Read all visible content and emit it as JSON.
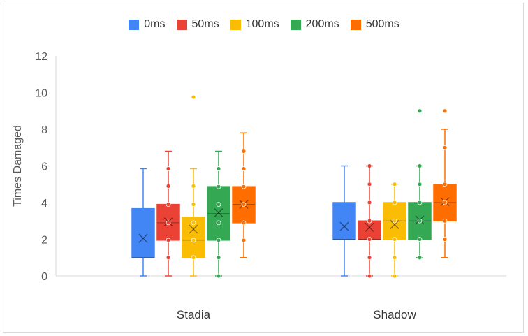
{
  "chart_data": {
    "type": "box",
    "title": "",
    "xlabel": "",
    "ylabel": "Times Damaged",
    "ylim": [
      0,
      12
    ],
    "yticks": [
      0,
      2,
      4,
      6,
      8,
      10,
      12
    ],
    "grid": false,
    "legend_position": "top",
    "categories": [
      "Stadia",
      "Shadow"
    ],
    "series": [
      {
        "name": "0ms",
        "color": "#4285f4",
        "boxes": [
          {
            "min": 0,
            "q1": 1,
            "median": 1,
            "q3": 3.67,
            "max": 5.85,
            "mean": 2.05,
            "points": []
          },
          {
            "min": 0,
            "q1": 2,
            "median": 2,
            "q3": 4,
            "max": 6,
            "mean": 2.7,
            "points": []
          }
        ]
      },
      {
        "name": "50ms",
        "color": "#ea4335",
        "boxes": [
          {
            "min": 0,
            "q1": 1.95,
            "median": 2.9,
            "q3": 3.9,
            "max": 6.8,
            "mean": 2.95,
            "points": [
              1,
              1.95,
              2.9,
              3.9,
              4.9,
              5.85
            ]
          },
          {
            "min": 0,
            "q1": 2,
            "median": 2,
            "q3": 3,
            "max": 6,
            "mean": 2.65,
            "points": [
              0,
              1,
              2,
              3,
              4,
              5,
              6
            ]
          }
        ]
      },
      {
        "name": "100ms",
        "color": "#fbbc04",
        "boxes": [
          {
            "min": 0,
            "q1": 1,
            "median": 1.95,
            "q3": 3.2,
            "max": 5.85,
            "mean": 2.55,
            "points": [
              1,
              1.95,
              2.9,
              3.9,
              4.9,
              9.75
            ]
          },
          {
            "min": 0,
            "q1": 2,
            "median": 3,
            "q3": 4,
            "max": 5,
            "mean": 2.8,
            "points": [
              0,
              1,
              2,
              3,
              4,
              5
            ]
          }
        ]
      },
      {
        "name": "200ms",
        "color": "#34a853",
        "boxes": [
          {
            "min": 0,
            "q1": 1.95,
            "median": 3.4,
            "q3": 4.87,
            "max": 6.8,
            "mean": 3.45,
            "points": [
              0,
              1,
              1.95,
              2.9,
              3.9,
              4.87,
              5.85
            ]
          },
          {
            "min": 1,
            "q1": 2,
            "median": 3,
            "q3": 4,
            "max": 6,
            "mean": 3.05,
            "points": [
              1,
              2,
              3,
              4,
              5,
              6,
              9
            ]
          }
        ]
      },
      {
        "name": "500ms",
        "color": "#ff6d01",
        "boxes": [
          {
            "min": 1,
            "q1": 2.9,
            "median": 3.9,
            "q3": 4.87,
            "max": 7.8,
            "mean": 3.9,
            "points": [
              1.95,
              2.9,
              3.9,
              4.87,
              5.85,
              6.8
            ]
          },
          {
            "min": 1,
            "q1": 3,
            "median": 4,
            "q3": 5,
            "max": 8,
            "mean": 4.05,
            "points": [
              2,
              3,
              4,
              5,
              7,
              9
            ]
          }
        ]
      }
    ]
  }
}
